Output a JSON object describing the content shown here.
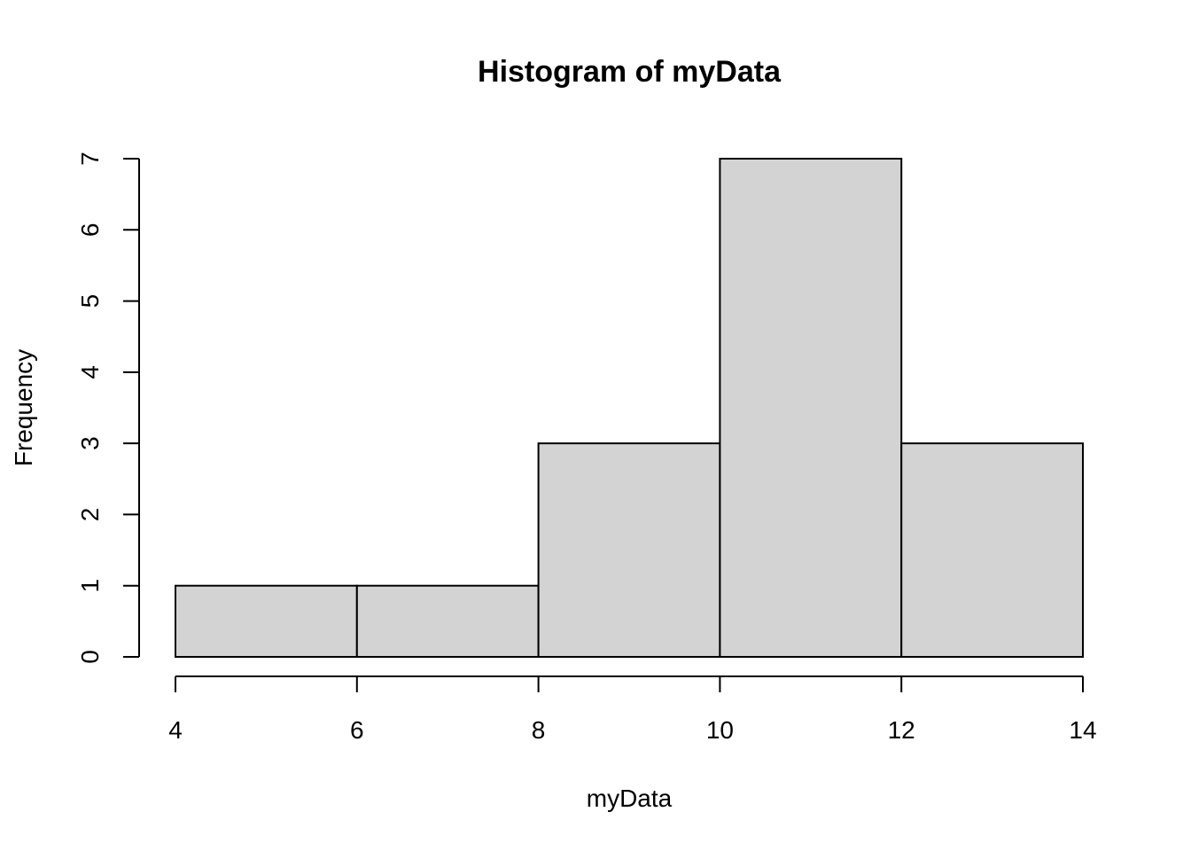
{
  "chart_data": {
    "type": "bar",
    "title": "Histogram of myData",
    "xlabel": "myData",
    "ylabel": "Frequency",
    "bins": [
      {
        "start": 4,
        "end": 6,
        "count": 1
      },
      {
        "start": 6,
        "end": 8,
        "count": 1
      },
      {
        "start": 8,
        "end": 10,
        "count": 3
      },
      {
        "start": 10,
        "end": 12,
        "count": 7
      },
      {
        "start": 12,
        "end": 14,
        "count": 3
      }
    ],
    "xlim": [
      4,
      14
    ],
    "ylim": [
      0,
      7
    ],
    "x_ticks": [
      "4",
      "6",
      "8",
      "10",
      "12",
      "14"
    ],
    "y_ticks": [
      "0",
      "1",
      "2",
      "3",
      "4",
      "5",
      "6",
      "7"
    ],
    "grid": false,
    "legend": "none",
    "bar_color": "#d3d3d3",
    "edge_color": "#000000"
  }
}
